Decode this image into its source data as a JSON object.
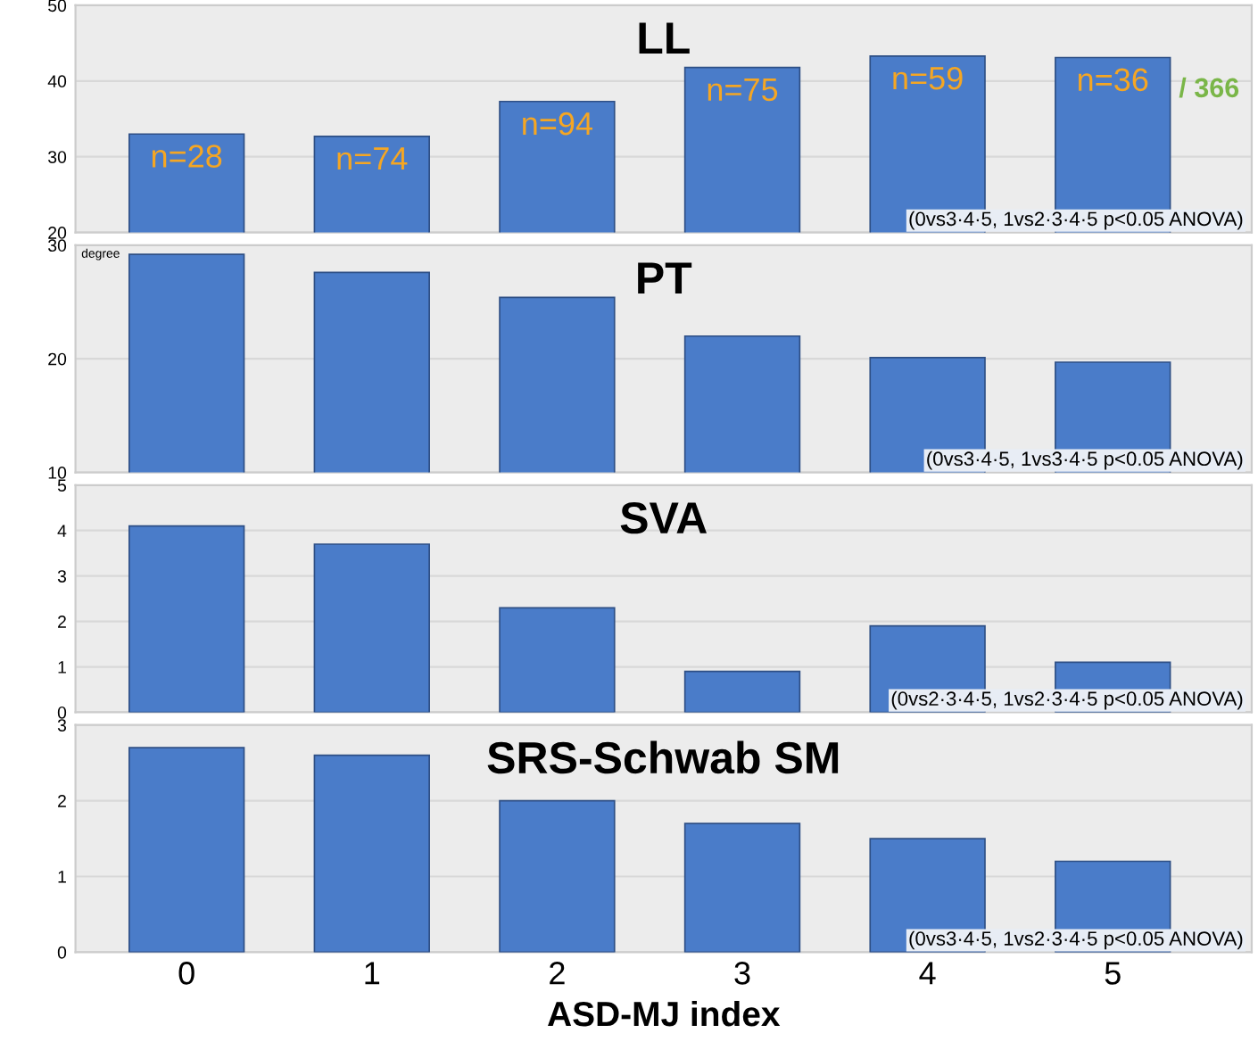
{
  "chart_data": [
    {
      "type": "bar",
      "title": "LL",
      "categories": [
        "0",
        "1",
        "2",
        "3",
        "4",
        "5"
      ],
      "values": [
        33,
        32.7,
        37.3,
        41.8,
        43.3,
        43.1
      ],
      "color": "#4a7cc9",
      "ylim": [
        20,
        50
      ],
      "yticks": [
        20,
        30,
        40,
        50
      ],
      "grid": "y",
      "tick_labels": "y",
      "annotations": [
        {
          "text": "n=28",
          "x": "0",
          "y": 33
        },
        {
          "text": "n=74",
          "x": "1",
          "y": 32.7
        },
        {
          "text": "n=94",
          "x": "2",
          "y": 37.3
        },
        {
          "text": "n=75",
          "x": "3",
          "y": 41.8
        },
        {
          "text": "n=59",
          "x": "4",
          "y": 43.3
        },
        {
          "text": "n=36",
          "x": "5",
          "y": 43.1
        },
        "/ 366",
        "(0vs3·4·5, 1vs2·3·4·5 p<0.05 ANOVA)"
      ]
    },
    {
      "type": "bar",
      "title": "PT",
      "ylabel": "degree",
      "categories": [
        "0",
        "1",
        "2",
        "3",
        "4",
        "5"
      ],
      "values": [
        29.2,
        27.6,
        25.4,
        22.0,
        20.1,
        19.7
      ],
      "color": "#4a7cc9",
      "ylim": [
        10,
        30
      ],
      "yticks": [
        10,
        20,
        30
      ],
      "grid": "y",
      "tick_labels": "y",
      "annotations": [
        "(0vs3·4·5, 1vs3·4·5 p<0.05 ANOVA)"
      ]
    },
    {
      "type": "bar",
      "title": "SVA",
      "categories": [
        "0",
        "1",
        "2",
        "3",
        "4",
        "5"
      ],
      "values": [
        4.1,
        3.7,
        2.3,
        0.9,
        1.9,
        1.1
      ],
      "color": "#4a7cc9",
      "ylim": [
        0,
        5
      ],
      "yticks": [
        0,
        1,
        2,
        3,
        4,
        5
      ],
      "grid": "y",
      "tick_labels": "y",
      "annotations": [
        "(0vs2·3·4·5, 1vs2·3·4·5 p<0.05 ANOVA)"
      ]
    },
    {
      "type": "bar",
      "title": "SRS-Schwab SM",
      "xlabel": "ASD-MJ index",
      "categories": [
        "0",
        "1",
        "2",
        "3",
        "4",
        "5"
      ],
      "values": [
        2.7,
        2.6,
        2.0,
        1.7,
        1.5,
        1.2
      ],
      "color": "#4a7cc9",
      "ylim": [
        0,
        3
      ],
      "yticks": [
        0,
        1,
        2,
        3
      ],
      "grid": "y",
      "annotations": [
        "(0vs3·4·5, 1vs2·3·4·5 p<0.05 ANOVA)"
      ]
    }
  ]
}
